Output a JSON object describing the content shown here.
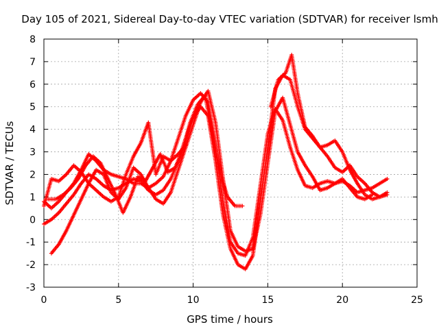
{
  "chart_data": {
    "type": "scatter",
    "title": "Day 105 of 2021, Sidereal Day-to-day VTEC variation (SDTVAR) for receiver lsmh",
    "xlabel": "GPS time / hours",
    "ylabel": "SDTVAR / TECUs",
    "xlim": [
      0,
      25
    ],
    "ylim": [
      -3,
      8
    ],
    "xticks": [
      "0",
      "5",
      "10",
      "15",
      "20",
      "25"
    ],
    "yticks": [
      "-3",
      "-2",
      "-1",
      "0",
      "1",
      "2",
      "3",
      "4",
      "5",
      "6",
      "7",
      "8"
    ],
    "grid": true,
    "marker": "+",
    "color": "#ff0000",
    "series": [
      {
        "x": [
          0.0,
          0.5,
          1.0,
          1.5,
          2.0,
          2.5,
          3.0,
          3.5,
          4.0,
          4.5,
          5.0,
          5.5,
          6.0,
          6.5,
          7.0,
          7.5,
          8.0,
          8.5,
          9.0,
          9.5,
          10.0,
          10.5,
          11.0,
          11.5,
          12.0,
          12.5,
          13.0,
          13.5,
          14.0,
          14.5,
          15.0,
          15.5,
          16.0,
          16.5,
          17.0,
          17.5,
          18.0,
          18.5,
          19.0,
          19.5,
          20.0,
          20.5,
          21.0,
          21.5,
          22.0,
          22.5,
          23.0
        ],
        "y": [
          0.8,
          0.5,
          0.8,
          1.2,
          1.6,
          2.2,
          2.9,
          2.6,
          2.2,
          2.0,
          1.9,
          1.8,
          1.6,
          1.6,
          1.4,
          1.6,
          1.9,
          2.6,
          3.6,
          4.6,
          5.3,
          5.6,
          5.2,
          3.2,
          0.8,
          -1.0,
          -1.5,
          -1.6,
          -0.8,
          1.5,
          3.8,
          4.9,
          4.4,
          3.2,
          2.2,
          1.5,
          1.4,
          1.6,
          1.7,
          1.6,
          1.7,
          1.5,
          1.2,
          1.3,
          1.4,
          1.6,
          1.8
        ]
      },
      {
        "x": [
          0.0,
          0.5,
          1.0,
          1.5,
          2.0,
          2.5,
          3.0,
          3.5,
          4.0,
          4.5,
          5.0,
          5.5,
          6.0,
          6.5,
          7.0,
          7.5,
          8.0,
          8.5,
          9.0,
          9.5,
          10.0,
          10.5,
          11.0,
          11.5,
          12.0,
          12.5,
          13.0,
          13.5,
          14.0,
          14.5,
          15.0,
          15.5,
          16.0,
          16.5,
          17.0,
          17.5,
          18.0,
          18.5,
          19.0,
          19.5,
          20.0,
          20.5,
          21.0,
          21.5,
          22.0,
          22.5,
          23.0
        ],
        "y": [
          -0.2,
          0.0,
          0.3,
          0.7,
          1.1,
          1.6,
          2.0,
          1.8,
          1.5,
          1.3,
          1.4,
          1.6,
          1.8,
          1.7,
          1.3,
          1.1,
          1.3,
          1.8,
          2.6,
          3.6,
          4.5,
          5.0,
          4.6,
          2.6,
          0.2,
          -1.3,
          -2.0,
          -2.2,
          -1.6,
          0.8,
          3.2,
          5.8,
          6.4,
          6.2,
          5.0,
          4.0,
          3.6,
          3.2,
          3.3,
          3.5,
          3.0,
          2.2,
          1.6,
          1.1,
          0.9,
          1.0,
          1.2
        ]
      },
      {
        "x": [
          0.5,
          1.0,
          1.5,
          2.0,
          2.5,
          3.0,
          3.5,
          4.0,
          4.5,
          5.0,
          5.5,
          6.0,
          6.5,
          7.0,
          7.5,
          8.0,
          8.5,
          9.0,
          9.5,
          10.0,
          10.5,
          11.0,
          11.5,
          12.0,
          12.5,
          13.0,
          13.5,
          14.0,
          14.5,
          15.0,
          15.5,
          16.0,
          16.5,
          17.0,
          17.5,
          18.0,
          18.5,
          19.0,
          19.5,
          20.0,
          20.5,
          21.0,
          21.5,
          22.0
        ],
        "y": [
          -1.5,
          -1.1,
          -0.5,
          0.2,
          0.9,
          1.6,
          2.2,
          2.0,
          1.2,
          0.9,
          1.4,
          2.3,
          2.0,
          1.4,
          0.9,
          0.7,
          1.2,
          2.2,
          3.2,
          4.2,
          5.2,
          5.7,
          4.3,
          1.8,
          -0.5,
          -1.2,
          -1.4,
          -1.3,
          0.2,
          2.5,
          4.8,
          5.4,
          4.2,
          3.0,
          2.4,
          1.9,
          1.3,
          1.4,
          1.6,
          1.8,
          1.4,
          1.0,
          0.9,
          1.1
        ]
      },
      {
        "x": [
          0.0,
          0.5,
          1.0,
          1.5,
          2.0,
          2.5,
          3.0,
          3.5,
          4.0,
          4.5,
          5.0,
          5.5,
          6.0,
          6.5,
          7.0,
          7.5,
          8.0,
          8.5,
          9.0,
          9.5
        ],
        "y": [
          0.6,
          1.8,
          1.7,
          2.0,
          2.4,
          2.1,
          1.6,
          1.3,
          1.0,
          0.8,
          1.0,
          2.0,
          2.8,
          3.4,
          4.3,
          2.0,
          2.8,
          2.6,
          2.9,
          3.3
        ]
      },
      {
        "x": [
          0.3,
          0.8,
          1.3,
          1.8,
          2.3,
          2.8,
          3.3,
          3.8,
          4.3,
          4.8,
          5.3,
          5.8,
          6.3,
          6.8,
          7.3,
          7.8,
          8.3,
          8.8,
          9.3,
          9.8,
          10.3,
          10.8,
          11.3,
          11.8,
          12.3,
          12.8,
          13.3
        ],
        "y": [
          0.9,
          0.9,
          1.1,
          1.4,
          1.8,
          2.4,
          2.8,
          2.5,
          1.8,
          1.1,
          0.3,
          1.0,
          1.9,
          1.7,
          2.3,
          2.9,
          2.1,
          2.3,
          3.1,
          4.3,
          5.1,
          5.5,
          3.8,
          2.1,
          1.0,
          0.6,
          0.6
        ]
      },
      {
        "x": [
          15.2,
          15.7,
          16.2,
          16.6,
          17.0,
          17.5,
          18.0,
          18.5,
          19.0,
          19.5,
          20.0,
          20.5,
          21.0,
          21.5,
          22.0,
          22.5,
          23.0
        ],
        "y": [
          5.0,
          6.2,
          6.5,
          7.3,
          5.6,
          4.1,
          3.7,
          3.2,
          2.8,
          2.3,
          2.1,
          2.4,
          1.9,
          1.6,
          1.2,
          1.0,
          1.1
        ]
      }
    ]
  }
}
